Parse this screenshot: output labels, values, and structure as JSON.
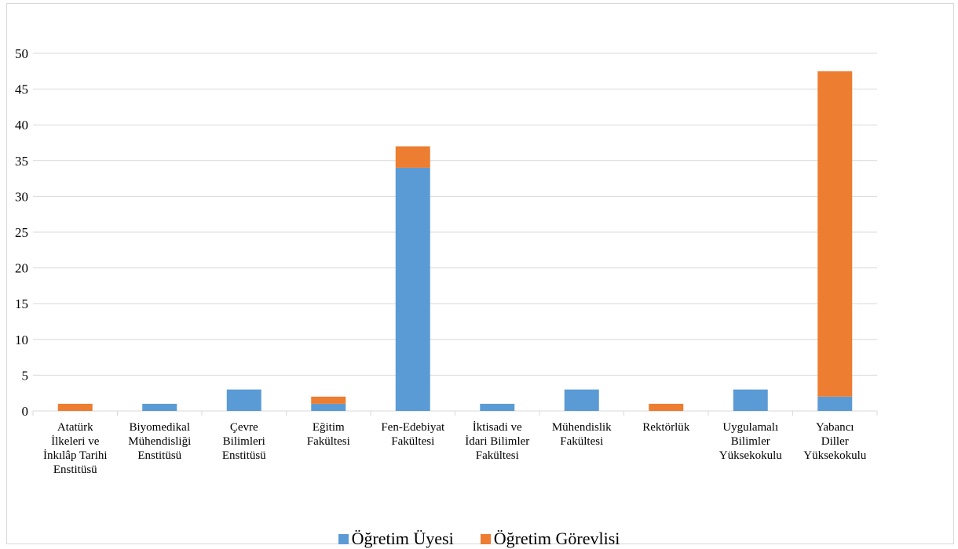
{
  "chart_data": {
    "type": "bar",
    "stacked": true,
    "categories": [
      [
        "Atatürk",
        "İlkeleri ve",
        "İnkılâp Tarihi",
        "Enstitüsü"
      ],
      [
        "Biyomedikal",
        "Mühendisliği",
        "Enstitüsü"
      ],
      [
        "Çevre",
        "Bilimleri",
        "Enstitüsü"
      ],
      [
        "Eğitim",
        "Fakültesi"
      ],
      [
        "Fen-Edebiyat",
        "Fakültesi"
      ],
      [
        "İktisadi ve",
        "İdari Bilimler",
        "Fakültesi"
      ],
      [
        "Mühendislik",
        "Fakültesi"
      ],
      [
        "Rektörlük"
      ],
      [
        "Uygulamalı",
        "Bilimler",
        "Yüksekokulu"
      ],
      [
        "Yabancı",
        "Diller",
        "Yüksekokulu"
      ]
    ],
    "series": [
      {
        "name": "Öğretim Üyesi",
        "color": "#5b9bd5",
        "values": [
          0,
          1,
          3,
          1,
          34,
          1,
          3,
          0,
          3,
          2
        ]
      },
      {
        "name": "Öğretim Görevlisi",
        "color": "#ed7d31",
        "values": [
          1,
          0,
          0,
          1,
          3,
          0,
          0,
          1,
          0,
          45.5
        ]
      }
    ],
    "ylim": [
      0,
      50
    ],
    "yticks": [
      0,
      5,
      10,
      15,
      20,
      25,
      30,
      35,
      40,
      45,
      50
    ],
    "grid": true,
    "legend": "bottom"
  }
}
